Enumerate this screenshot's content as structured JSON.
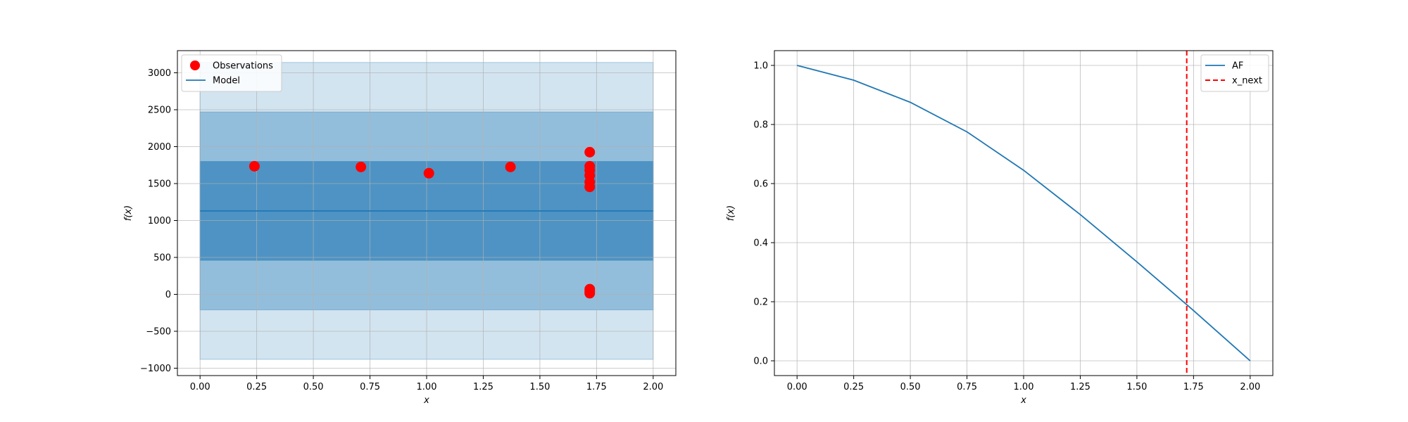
{
  "chart_data": [
    {
      "type": "scatter",
      "xlabel": "x",
      "ylabel": "f(x)",
      "xlim": [
        -0.1,
        2.1
      ],
      "ylim": [
        -1100,
        3300
      ],
      "xticks": [
        0.0,
        0.25,
        0.5,
        0.75,
        1.0,
        1.25,
        1.5,
        1.75,
        2.0
      ],
      "xtick_labels": [
        "0.00",
        "0.25",
        "0.50",
        "0.75",
        "1.00",
        "1.25",
        "1.50",
        "1.75",
        "2.00"
      ],
      "yticks": [
        -1000,
        -500,
        0,
        500,
        1000,
        1500,
        2000,
        2500,
        3000
      ],
      "ytick_labels": [
        "−1000",
        "−500",
        "0",
        "500",
        "1000",
        "1500",
        "2000",
        "2500",
        "3000"
      ],
      "grid": true,
      "legend_position": "top-left",
      "bands": [
        {
          "low": -880,
          "high": 3140,
          "color": "#1f77b4",
          "opacity": 0.2
        },
        {
          "low": -210,
          "high": 2470,
          "color": "#1f77b4",
          "opacity": 0.35
        },
        {
          "low": 460,
          "high": 1800,
          "color": "#1f77b4",
          "opacity": 0.6
        }
      ],
      "band_x": [
        0.0,
        2.0
      ],
      "series": [
        {
          "name": "Observations",
          "kind": "scatter",
          "color": "#ff0000",
          "x": [
            0.24,
            0.71,
            1.01,
            1.37,
            1.72,
            1.72,
            1.72,
            1.72,
            1.72,
            1.72,
            1.72,
            1.72,
            1.72
          ],
          "y": [
            1735,
            1725,
            1640,
            1725,
            1925,
            1735,
            1680,
            1610,
            1520,
            1455,
            70,
            40,
            15
          ]
        },
        {
          "name": "Model",
          "kind": "line",
          "color": "#1f77b4",
          "x": [
            0.0,
            2.0
          ],
          "y": [
            1130,
            1130
          ]
        }
      ]
    },
    {
      "type": "line",
      "xlabel": "x",
      "ylabel": "f(x)",
      "xlim": [
        -0.1,
        2.1
      ],
      "ylim": [
        -0.05,
        1.05
      ],
      "xticks": [
        0.0,
        0.25,
        0.5,
        0.75,
        1.0,
        1.25,
        1.5,
        1.75,
        2.0
      ],
      "xtick_labels": [
        "0.00",
        "0.25",
        "0.50",
        "0.75",
        "1.00",
        "1.25",
        "1.50",
        "1.75",
        "2.00"
      ],
      "yticks": [
        0.0,
        0.2,
        0.4,
        0.6,
        0.8,
        1.0
      ],
      "ytick_labels": [
        "0.0",
        "0.2",
        "0.4",
        "0.6",
        "0.8",
        "1.0"
      ],
      "grid": true,
      "legend_position": "top-right",
      "series": [
        {
          "name": "AF",
          "kind": "line",
          "color": "#1f77b4",
          "x": [
            0.0,
            0.25,
            0.5,
            0.75,
            1.0,
            1.25,
            1.5,
            1.72,
            1.75,
            2.0
          ],
          "y": [
            1.0,
            0.95,
            0.875,
            0.775,
            0.645,
            0.495,
            0.335,
            0.19,
            0.17,
            0.0
          ]
        },
        {
          "name": "x_next",
          "kind": "vline",
          "color": "#ff0000",
          "x": 1.72
        }
      ]
    }
  ]
}
